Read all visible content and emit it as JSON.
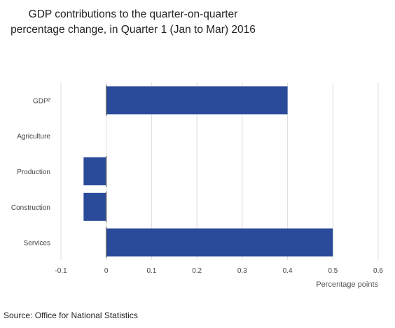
{
  "title_line1": "GDP contributions   to the quarter-on-quarter",
  "title_line2": "percentage change, in Quarter 1 (Jan to Mar) 2016",
  "source": "Source: Office for National Statistics",
  "chart_data": {
    "type": "bar",
    "orientation": "horizontal",
    "categories": [
      "GDP²",
      "Agriculture",
      "Production",
      "Construction",
      "Services"
    ],
    "values": [
      0.4,
      0.0,
      -0.05,
      -0.05,
      0.5
    ],
    "xlabel": "Percentage points",
    "xlim": [
      -0.1,
      0.6
    ],
    "xticks": [
      "-0.1",
      "0",
      "0.1",
      "0.2",
      "0.3",
      "0.4",
      "0.5",
      "0.6"
    ],
    "grid": true,
    "bar_color": "#2a4a9a"
  }
}
